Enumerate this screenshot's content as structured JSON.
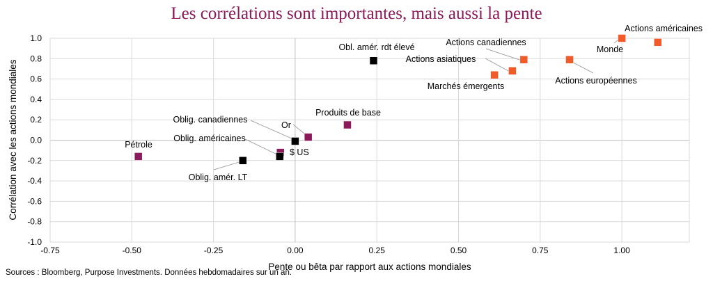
{
  "chart_data": {
    "type": "scatter",
    "title": "Les corrélations sont importantes, mais aussi la pente",
    "xlabel": "Pente ou bêta par rapport aux actions mondiales",
    "ylabel": "Corrélation avec les actions mondiales",
    "xlim": [
      -0.75,
      1.2
    ],
    "ylim": [
      -1.0,
      1.0
    ],
    "x_ticks": [
      "-0.75",
      "-0.50",
      "-0.25",
      "0.00",
      "0.25",
      "0.50",
      "0.75",
      "1.00"
    ],
    "y_ticks": [
      "1.0",
      "0.8",
      "0.6",
      "0.4",
      "0.2",
      "0.0",
      "-0.2",
      "-0.4",
      "-0.6",
      "-0.8",
      "-1.0"
    ],
    "grid": true,
    "colors": {
      "equity": "#F15A29",
      "commodity_fx": "#8B1A5A",
      "bond": "#000000"
    },
    "points": [
      {
        "label": "Actions américaines",
        "x": 1.11,
        "y": 0.96,
        "group": "equity"
      },
      {
        "label": "Monde",
        "x": 1.0,
        "y": 1.0,
        "group": "equity"
      },
      {
        "label": "Actions européennes",
        "x": 0.84,
        "y": 0.79,
        "group": "equity"
      },
      {
        "label": "Actions canadiennes",
        "x": 0.7,
        "y": 0.79,
        "group": "equity"
      },
      {
        "label": "Actions asiatiques",
        "x": 0.665,
        "y": 0.68,
        "group": "equity"
      },
      {
        "label": "Marchés émergents",
        "x": 0.61,
        "y": 0.64,
        "group": "equity"
      },
      {
        "label": "Obl. amér. rdt élevé",
        "x": 0.24,
        "y": 0.78,
        "group": "bond"
      },
      {
        "label": "Produits de base",
        "x": 0.16,
        "y": 0.15,
        "group": "commodity_fx"
      },
      {
        "label": "Or",
        "x": 0.04,
        "y": 0.03,
        "group": "commodity_fx"
      },
      {
        "label": "Oblig. canadiennes",
        "x": 0.0,
        "y": -0.01,
        "group": "bond"
      },
      {
        "label": "$ US",
        "x": -0.045,
        "y": -0.12,
        "group": "commodity_fx"
      },
      {
        "label": "Oblig. américaines",
        "x": -0.047,
        "y": -0.16,
        "group": "bond"
      },
      {
        "label": "Oblig. amér. LT",
        "x": -0.16,
        "y": -0.2,
        "group": "bond"
      },
      {
        "label": "Pétrole",
        "x": -0.48,
        "y": -0.16,
        "group": "commodity_fx"
      }
    ]
  },
  "source": "Sources : Bloomberg, Purpose Investments. Données hebdomadaires sur un an."
}
